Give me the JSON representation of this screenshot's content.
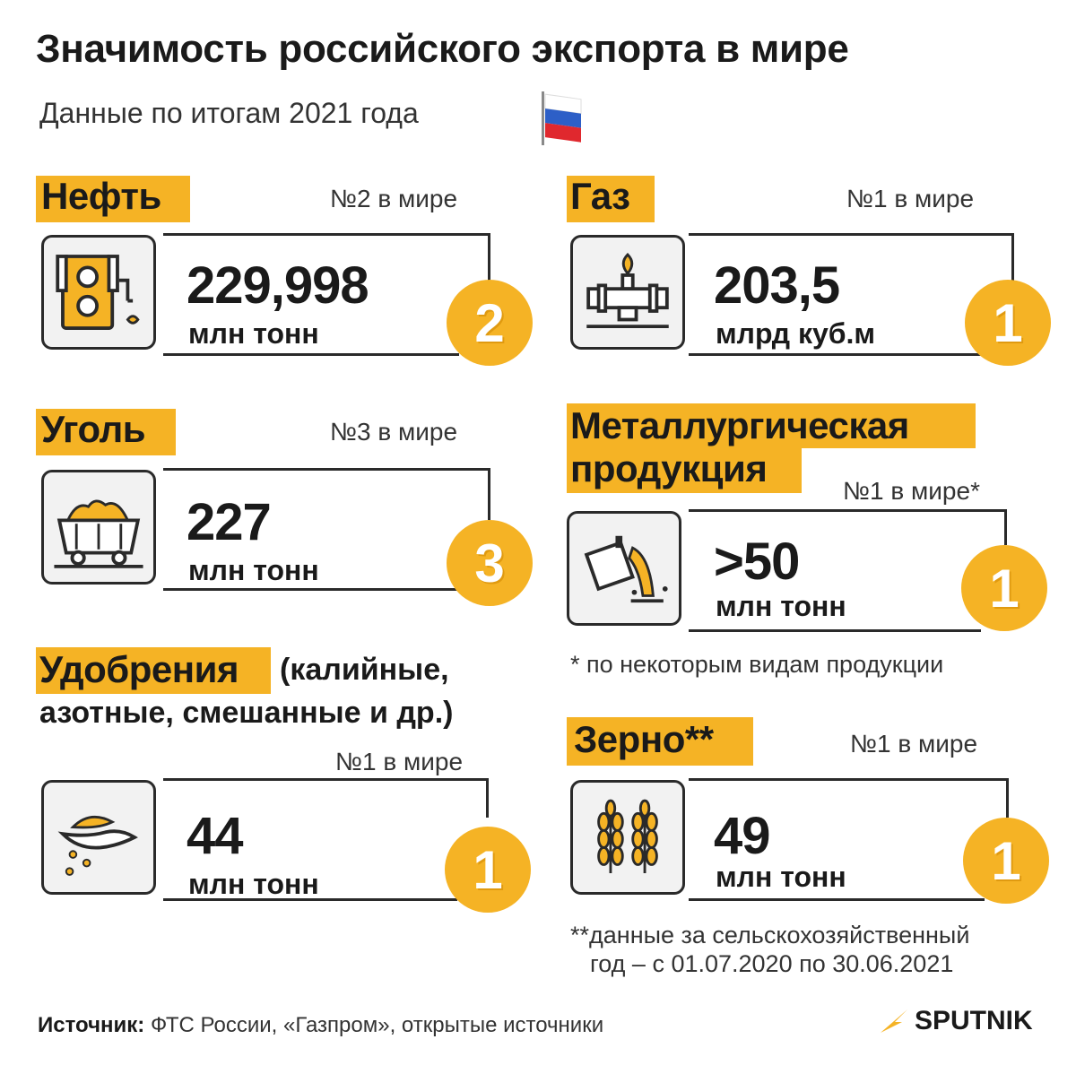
{
  "title": "Значимость российского экспорта в мире",
  "subtitle": "Данные по итогам 2021 года",
  "colors": {
    "accent": "#f5b325",
    "text": "#1a1a1a",
    "icon_bg": "#f2f2f2"
  },
  "items": [
    {
      "category": "Нефть",
      "rank_text": "№2 в мире",
      "value": "229,998",
      "unit": "млн тонн",
      "rank": "2",
      "icon": "oil-pump-icon"
    },
    {
      "category": "Газ",
      "rank_text": "№1 в мире",
      "value": "203,5",
      "unit": "млрд куб.м",
      "rank": "1",
      "icon": "gas-pipeline-icon"
    },
    {
      "category": "Уголь",
      "rank_text": "№3 в мире",
      "value": "227",
      "unit": "млн тонн",
      "rank": "3",
      "icon": "coal-cart-icon"
    },
    {
      "category_line1": "Металлургическая",
      "category_line2": "продукция",
      "rank_text": "№1 в мире*",
      "value": ">50",
      "unit": "млн тонн",
      "rank": "1",
      "icon": "metal-pour-icon",
      "note": "* по некоторым видам продукции"
    },
    {
      "category": "Удобрения",
      "category_suffix_1": "(калийные,",
      "category_suffix_2": "азотные, смешанные и др.)",
      "rank_text": "№1 в мире",
      "value": "44",
      "unit": "млн тонн",
      "rank": "1",
      "icon": "fertilizer-hand-icon"
    },
    {
      "category": "Зерно**",
      "rank_text": "№1 в мире",
      "value": "49",
      "unit": "млн тонн",
      "rank": "1",
      "icon": "wheat-icon",
      "note_line1": "**данные за сельскохозяйственный",
      "note_line2": "год – с 01.07.2020 по 30.06.2021"
    }
  ],
  "source_label": "Источник:",
  "source_text": "ФТС России, «Газпром», открытые источники",
  "logo": "SPUTNIK"
}
